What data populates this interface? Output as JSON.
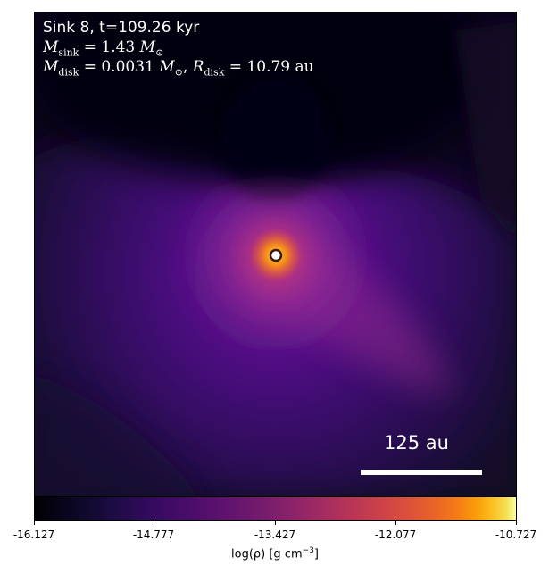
{
  "panel": {
    "title_line": "Sink 8, t=109.26 kyr",
    "msink_symbol": "M",
    "msink_sub": "sink",
    "msink_value": " = 1.43 ",
    "msink_unit": "M",
    "msink_unit_sub": "⊙",
    "mdisk_symbol": "M",
    "mdisk_sub": "disk",
    "mdisk_value": " = 0.0031 ",
    "mdisk_unit": "M",
    "mdisk_unit_sub": "⊙",
    "rdisk_sep": ", ",
    "rdisk_symbol": "R",
    "rdisk_sub": "disk",
    "rdisk_value": " = 10.79 au",
    "scalebar_label": "125 au"
  },
  "colorbar": {
    "ticks": [
      "-16.127",
      "-14.777",
      "-13.427",
      "-12.077",
      "-10.727"
    ],
    "label_main": "log(ρ) [g cm",
    "label_sup": "−3",
    "label_end": "]",
    "colormap": "inferno"
  },
  "colors": {
    "background_dark": "#0a0418",
    "scalebar": "#ffffff",
    "sink_marker": "#ffffff"
  }
}
